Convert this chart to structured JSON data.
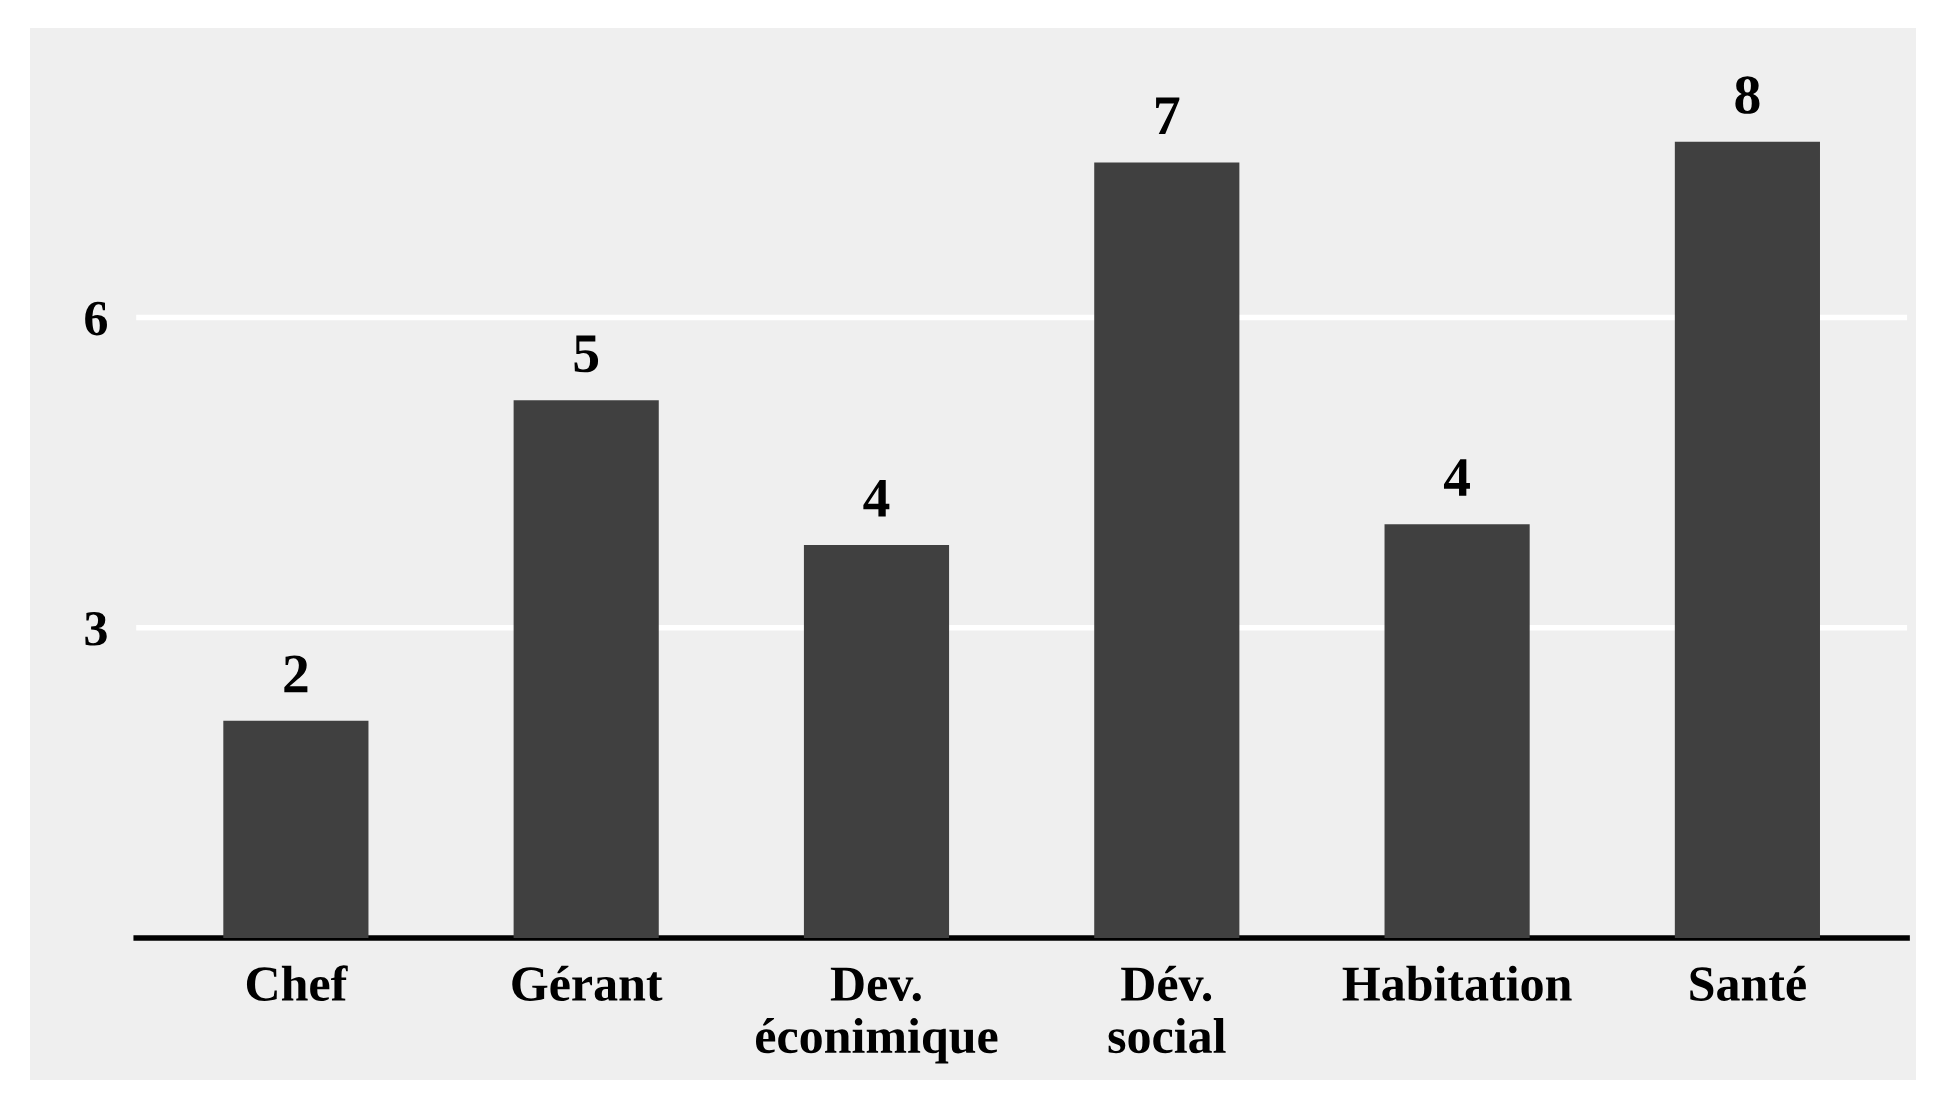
{
  "chart_data": {
    "type": "bar",
    "categories": [
      "Chef",
      "Gérant",
      "Dev.\néconimique",
      "Dév.\nsocial",
      "Habitation",
      "Santé"
    ],
    "values": [
      2.1,
      5.2,
      3.8,
      7.5,
      4.0,
      7.7
    ],
    "value_labels": [
      "2",
      "5",
      "4",
      "7",
      "4",
      "8"
    ],
    "color": "#404040",
    "ylim": [
      0,
      8.8
    ],
    "yticks": [
      3,
      6
    ],
    "grid": "y"
  }
}
